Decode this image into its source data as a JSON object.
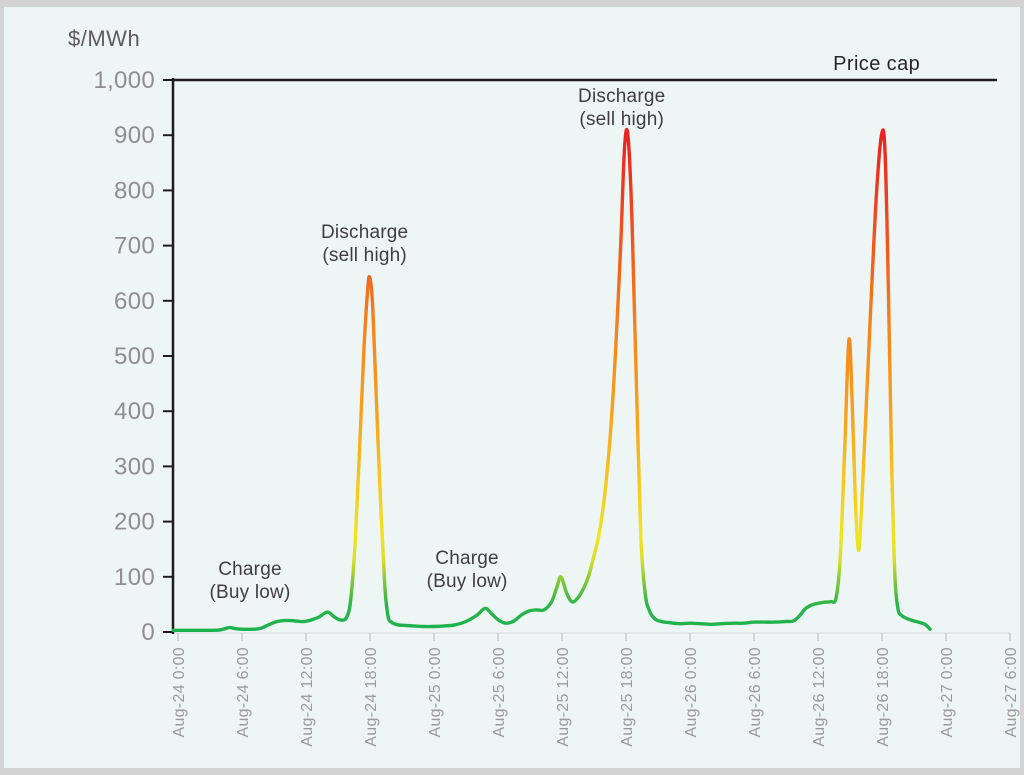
{
  "chart_data": {
    "type": "line",
    "title": "$/MWh",
    "xlabel": "",
    "ylabel": "$/MWh",
    "ylim": [
      0,
      1000
    ],
    "xlim_hours": [
      0,
      78
    ],
    "grid": false,
    "legend": "none",
    "price_cap": {
      "label": "Price cap",
      "value": 1000
    },
    "price_cap_label_hour": 65.5,
    "y_ticks": [
      {
        "value": 0,
        "label": "0"
      },
      {
        "value": 100,
        "label": "100"
      },
      {
        "value": 200,
        "label": "200"
      },
      {
        "value": 300,
        "label": "300"
      },
      {
        "value": 400,
        "label": "400"
      },
      {
        "value": 500,
        "label": "500"
      },
      {
        "value": 600,
        "label": "600"
      },
      {
        "value": 700,
        "label": "700"
      },
      {
        "value": 800,
        "label": "800"
      },
      {
        "value": 900,
        "label": "900"
      },
      {
        "value": 1000,
        "label": "1,000"
      }
    ],
    "x_ticks": [
      {
        "hour": 0,
        "label": "Aug-24 0:00"
      },
      {
        "hour": 6,
        "label": "Aug-24 6:00"
      },
      {
        "hour": 12,
        "label": "Aug-24 12:00"
      },
      {
        "hour": 18,
        "label": "Aug-24 18:00"
      },
      {
        "hour": 24,
        "label": "Aug-25 0:00"
      },
      {
        "hour": 30,
        "label": "Aug-25 6:00"
      },
      {
        "hour": 36,
        "label": "Aug-25 12:00"
      },
      {
        "hour": 42,
        "label": "Aug-25 18:00"
      },
      {
        "hour": 48,
        "label": "Aug-26 0:00"
      },
      {
        "hour": 54,
        "label": "Aug-26 6:00"
      },
      {
        "hour": 60,
        "label": "Aug-26 12:00"
      },
      {
        "hour": 66,
        "label": "Aug-26 18:00"
      },
      {
        "hour": 72,
        "label": "Aug-27 0:00"
      },
      {
        "hour": 78,
        "label": "Aug-27 6:00"
      }
    ],
    "series": [
      {
        "name": "electricity-price",
        "points": [
          [
            -0.45,
            3
          ],
          [
            0,
            3
          ],
          [
            1,
            3
          ],
          [
            2,
            3
          ],
          [
            3,
            3
          ],
          [
            4,
            4
          ],
          [
            4.8,
            8
          ],
          [
            5.4,
            6
          ],
          [
            6,
            5
          ],
          [
            7,
            5
          ],
          [
            7.8,
            7
          ],
          [
            8.5,
            13
          ],
          [
            9.3,
            19
          ],
          [
            10.2,
            21
          ],
          [
            11,
            20
          ],
          [
            11.8,
            19
          ],
          [
            12.5,
            22
          ],
          [
            13.2,
            27
          ],
          [
            14,
            36
          ],
          [
            14.6,
            28
          ],
          [
            15.2,
            22
          ],
          [
            15.8,
            26
          ],
          [
            16.2,
            60
          ],
          [
            16.6,
            160
          ],
          [
            17,
            320
          ],
          [
            17.4,
            500
          ],
          [
            17.8,
            625
          ],
          [
            18,
            640
          ],
          [
            18.25,
            590
          ],
          [
            18.6,
            420
          ],
          [
            19,
            230
          ],
          [
            19.4,
            80
          ],
          [
            19.7,
            28
          ],
          [
            20,
            18
          ],
          [
            20.6,
            13
          ],
          [
            21.3,
            12
          ],
          [
            22,
            11
          ],
          [
            23,
            10
          ],
          [
            24,
            10
          ],
          [
            25,
            11
          ],
          [
            26,
            13
          ],
          [
            27,
            19
          ],
          [
            28,
            30
          ],
          [
            28.8,
            43
          ],
          [
            29.4,
            33
          ],
          [
            30.1,
            21
          ],
          [
            30.8,
            16
          ],
          [
            31.5,
            20
          ],
          [
            32.2,
            31
          ],
          [
            32.9,
            38
          ],
          [
            33.6,
            40
          ],
          [
            34.3,
            40
          ],
          [
            35,
            54
          ],
          [
            35.5,
            80
          ],
          [
            35.9,
            100
          ],
          [
            36.4,
            72
          ],
          [
            36.9,
            55
          ],
          [
            37.4,
            60
          ],
          [
            38,
            78
          ],
          [
            38.5,
            102
          ],
          [
            39,
            138
          ],
          [
            39.5,
            180
          ],
          [
            40,
            248
          ],
          [
            40.5,
            350
          ],
          [
            41,
            500
          ],
          [
            41.5,
            700
          ],
          [
            41.8,
            855
          ],
          [
            42.05,
            910
          ],
          [
            42.3,
            868
          ],
          [
            42.6,
            720
          ],
          [
            43,
            430
          ],
          [
            43.4,
            170
          ],
          [
            43.8,
            70
          ],
          [
            44.2,
            38
          ],
          [
            44.7,
            24
          ],
          [
            45.3,
            19
          ],
          [
            46,
            17
          ],
          [
            47,
            15
          ],
          [
            48,
            16
          ],
          [
            49,
            15
          ],
          [
            50,
            14
          ],
          [
            51,
            15
          ],
          [
            52,
            16
          ],
          [
            53,
            16
          ],
          [
            54,
            18
          ],
          [
            55,
            18
          ],
          [
            56,
            18
          ],
          [
            57,
            19
          ],
          [
            57.7,
            20
          ],
          [
            58.3,
            30
          ],
          [
            58.8,
            42
          ],
          [
            59.4,
            49
          ],
          [
            60,
            52
          ],
          [
            60.6,
            54
          ],
          [
            61.2,
            55
          ],
          [
            61.7,
            62
          ],
          [
            62.1,
            140
          ],
          [
            62.5,
            330
          ],
          [
            62.9,
            529
          ],
          [
            63.2,
            420
          ],
          [
            63.5,
            240
          ],
          [
            63.8,
            148
          ],
          [
            64.1,
            230
          ],
          [
            64.5,
            400
          ],
          [
            65,
            610
          ],
          [
            65.5,
            800
          ],
          [
            66,
            905
          ],
          [
            66.3,
            862
          ],
          [
            66.6,
            620
          ],
          [
            66.9,
            310
          ],
          [
            67.2,
            105
          ],
          [
            67.5,
            42
          ],
          [
            67.9,
            29
          ],
          [
            68.4,
            24
          ],
          [
            69,
            20
          ],
          [
            69.6,
            17
          ],
          [
            70.1,
            13
          ],
          [
            70.5,
            5
          ]
        ]
      }
    ],
    "annotations": [
      {
        "name": "charge-1",
        "lines": [
          "Charge",
          "(Buy low)"
        ],
        "hour": 6.75,
        "value": 92
      },
      {
        "name": "discharge-1",
        "lines": [
          "Discharge",
          "(sell high)"
        ],
        "hour": 17.5,
        "value": 702
      },
      {
        "name": "charge-2",
        "lines": [
          "Charge",
          "(Buy low)"
        ],
        "hour": 27.1,
        "value": 112
      },
      {
        "name": "discharge-2",
        "lines": [
          "Discharge",
          "(sell high)"
        ],
        "hour": 41.6,
        "value": 949
      }
    ],
    "gradient_stops": [
      {
        "value": 0,
        "color": "#1cb150"
      },
      {
        "value": 50,
        "color": "#2db44a"
      },
      {
        "value": 90,
        "color": "#7cc636"
      },
      {
        "value": 130,
        "color": "#d9de27"
      },
      {
        "value": 170,
        "color": "#f0e420"
      },
      {
        "value": 250,
        "color": "#f6cd1e"
      },
      {
        "value": 400,
        "color": "#f7a01c"
      },
      {
        "value": 550,
        "color": "#f5841d"
      },
      {
        "value": 650,
        "color": "#f3661c"
      },
      {
        "value": 800,
        "color": "#ee3b20"
      },
      {
        "value": 900,
        "color": "#e92421"
      },
      {
        "value": 1000,
        "color": "#e81f25"
      }
    ],
    "colors": {
      "frame": "#d3d3d3",
      "background": "#edf6f4",
      "axis": "#1c1c1c",
      "x_axis": "#dde4e2",
      "x_tick": "#c6cccb",
      "x_tick_label": "#9b9b9b",
      "y_tick_label": "#8e8e8e",
      "annotation": "#3e3e3e",
      "title": "#5c5c5c"
    }
  }
}
